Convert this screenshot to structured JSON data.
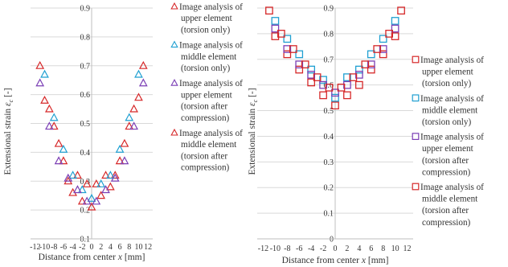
{
  "chart_data": [
    {
      "type": "scatter",
      "marker": "triangle",
      "xlabel": "Distance from center",
      "xlabel_var": "x",
      "xlabel_unit": "[mm]",
      "ylabel": "Extensional strain",
      "ylabel_var": "ε",
      "ylabel_sub": "c",
      "ylabel_unit": "[-]",
      "xticks": [
        "-12",
        "-10",
        "-8",
        "-6",
        "-4",
        "-2",
        "0",
        "2",
        "4",
        "6",
        "8",
        "10",
        "12"
      ],
      "yticks": [
        "0.1",
        "0.2",
        "0.3",
        "0.4",
        "0.5",
        "0.6",
        "0.7",
        "0.8",
        "0.9"
      ],
      "xlim": [
        -13,
        13
      ],
      "ylim": [
        0.1,
        0.9
      ],
      "grid": true,
      "legend_position": "right",
      "series": [
        {
          "name": "Image analysis of upper element (torsion only)",
          "color": "#d62728",
          "legend_lines": [
            "Image analysis of",
            "upper element",
            "(torsion only)"
          ],
          "x": [
            -11,
            -10,
            -9,
            -8,
            -7,
            -6,
            -5,
            -4,
            -3,
            -2,
            -1,
            0,
            1,
            2,
            3,
            4,
            5,
            6,
            7,
            8,
            9,
            10,
            11
          ],
          "y": [
            0.7,
            0.58,
            0.55,
            0.49,
            0.43,
            0.37,
            0.3,
            0.26,
            0.32,
            0.23,
            0.29,
            0.21,
            0.29,
            0.25,
            0.32,
            0.28,
            0.32,
            0.37,
            0.43,
            0.49,
            0.55,
            0.59,
            0.7
          ]
        },
        {
          "name": "Image analysis of middle element (torsion only)",
          "color": "#1f9fd1",
          "legend_lines": [
            "Image analysis of",
            "middle element",
            "(torsion only)"
          ],
          "x": [
            -10,
            -8,
            -6,
            -4,
            -2,
            0,
            2,
            4,
            6,
            8,
            10
          ],
          "y": [
            0.67,
            0.52,
            0.41,
            0.32,
            0.27,
            0.24,
            0.29,
            0.32,
            0.41,
            0.52,
            0.67
          ]
        },
        {
          "name": "Image analysis of upper element (torsion after compression)",
          "color": "#7b3fb5",
          "legend_lines": [
            "Image analysis of",
            "upper element",
            "(torsion after",
            "compression)"
          ],
          "x": [
            -11,
            -9,
            -7,
            -5,
            -3,
            -1,
            1,
            3,
            5,
            7,
            9,
            11
          ],
          "y": [
            0.64,
            0.49,
            0.37,
            0.31,
            0.27,
            0.23,
            0.23,
            0.27,
            0.31,
            0.37,
            0.49,
            0.64
          ]
        },
        {
          "name": "Image analysis of middle element (torsion after compression)",
          "color": "#d62728",
          "legend_lines": [
            "Image analysis of",
            "middle element",
            "(torsion after",
            "compression)"
          ],
          "x": [],
          "y": []
        }
      ]
    },
    {
      "type": "scatter",
      "marker": "square",
      "xlabel": "Distance from center",
      "xlabel_var": "x",
      "xlabel_unit": "[mm]",
      "ylabel": "Extensional strain",
      "ylabel_var": "ε",
      "ylabel_sub": "c",
      "ylabel_unit": "[-]",
      "xticks": [
        "-12",
        "-10",
        "-8",
        "-6",
        "-4",
        "-2",
        "0",
        "2",
        "4",
        "6",
        "8",
        "10",
        "12"
      ],
      "yticks": [
        "0",
        "0.1",
        "0.2",
        "0.3",
        "0.4",
        "0.5",
        "0.6",
        "0.7",
        "0.8",
        "0.9"
      ],
      "xlim": [
        -13,
        13
      ],
      "ylim": [
        0,
        0.9
      ],
      "grid": true,
      "legend_position": "right",
      "series": [
        {
          "name": "Image analysis of upper element (torsion only)",
          "color": "#d62728",
          "legend_lines": [
            "Image analysis of",
            "upper element",
            "(torsion only)"
          ],
          "x": [
            -11,
            -10,
            -8,
            -6,
            -4,
            -2,
            0,
            2,
            4,
            6,
            8,
            10,
            11
          ],
          "y": [
            0.89,
            0.79,
            0.72,
            0.66,
            0.61,
            0.56,
            0.52,
            0.56,
            0.6,
            0.66,
            0.72,
            0.79,
            0.89
          ]
        },
        {
          "name": "Image analysis of middle element (torsion only)",
          "color": "#1f9fd1",
          "legend_lines": [
            "Image analysis of",
            "middle element",
            "(torsion only)"
          ],
          "x": [
            -10,
            -8,
            -6,
            -4,
            -2,
            0,
            2,
            4,
            6,
            8,
            10
          ],
          "y": [
            0.85,
            0.78,
            0.72,
            0.66,
            0.62,
            0.55,
            0.63,
            0.66,
            0.72,
            0.78,
            0.85
          ]
        },
        {
          "name": "Image analysis of upper element (torsion after compression)",
          "color": "#7b3fb5",
          "legend_lines": [
            "Image analysis of",
            "upper element",
            "(torsion after",
            "compression)"
          ],
          "x": [
            -10,
            -8,
            -6,
            -4,
            -2,
            0,
            2,
            4,
            6,
            8,
            10
          ],
          "y": [
            0.82,
            0.74,
            0.68,
            0.64,
            0.6,
            0.57,
            0.6,
            0.64,
            0.68,
            0.74,
            0.82
          ]
        },
        {
          "name": "Image analysis of middle element (torsion after compression)",
          "color": "#d62728",
          "legend_lines": [
            "Image analysis of",
            "middle element",
            "(torsion after",
            "compression)"
          ],
          "x": [
            -9,
            -7,
            -5,
            -3,
            -1,
            1,
            3,
            5,
            7,
            9
          ],
          "y": [
            0.8,
            0.74,
            0.68,
            0.63,
            0.59,
            0.59,
            0.63,
            0.68,
            0.74,
            0.8
          ]
        }
      ]
    }
  ]
}
